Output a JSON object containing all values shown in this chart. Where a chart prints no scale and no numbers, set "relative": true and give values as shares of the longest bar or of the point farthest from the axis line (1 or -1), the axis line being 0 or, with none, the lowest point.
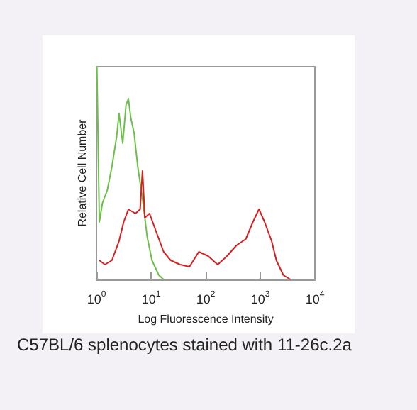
{
  "chart_data": {
    "type": "line",
    "relative": true,
    "log": "x",
    "xlabel": "Log Fluorescence Intensity",
    "ylabel": "Relative Cell Number",
    "xlim": [
      1,
      10000
    ],
    "xticks": [
      {
        "value": 1,
        "label": "10$^{0}$"
      },
      {
        "value": 10,
        "label": "10$^{1}$"
      },
      {
        "value": 100,
        "label": "10$^{2}$"
      },
      {
        "value": 1000,
        "label": "10$^{3}$"
      },
      {
        "value": 10000,
        "label": "10$^{4}$"
      }
    ],
    "grid": false,
    "marker": "none",
    "line_style": "solid",
    "annotations": [
      "C57BL/6 splenocytes stained with 11-26c.2a"
    ],
    "series": [
      {
        "color": "#6cc04a",
        "x": [
          1.02,
          1.13,
          1.29,
          1.58,
          1.92,
          2.34,
          2.59,
          3.03,
          3.48,
          3.85,
          4.25,
          4.88,
          5.71,
          6.97,
          8.49,
          10.4,
          13.9,
          17
        ],
        "values": [
          1.0,
          0.27,
          0.36,
          0.42,
          0.53,
          0.67,
          0.78,
          0.64,
          0.82,
          0.85,
          0.76,
          0.69,
          0.53,
          0.38,
          0.2,
          0.09,
          0.02,
          0
        ]
      },
      {
        "color": "#d42020",
        "x": [
          1.13,
          1.43,
          1.92,
          2.59,
          3.15,
          3.85,
          5.18,
          6.31,
          6.97,
          7.69,
          9.38,
          12.6,
          17,
          22.9,
          34,
          50.5,
          75,
          111,
          166,
          246,
          366,
          543,
          733,
          947,
          1202,
          1618,
          1972,
          2654,
          3573
        ],
        "values": [
          0.09,
          0.07,
          0.09,
          0.18,
          0.27,
          0.33,
          0.31,
          0.33,
          0.51,
          0.29,
          0.31,
          0.22,
          0.13,
          0.09,
          0.07,
          0.06,
          0.13,
          0.11,
          0.07,
          0.11,
          0.16,
          0.19,
          0.27,
          0.33,
          0.27,
          0.18,
          0.09,
          0.02,
          0
        ]
      }
    ]
  }
}
